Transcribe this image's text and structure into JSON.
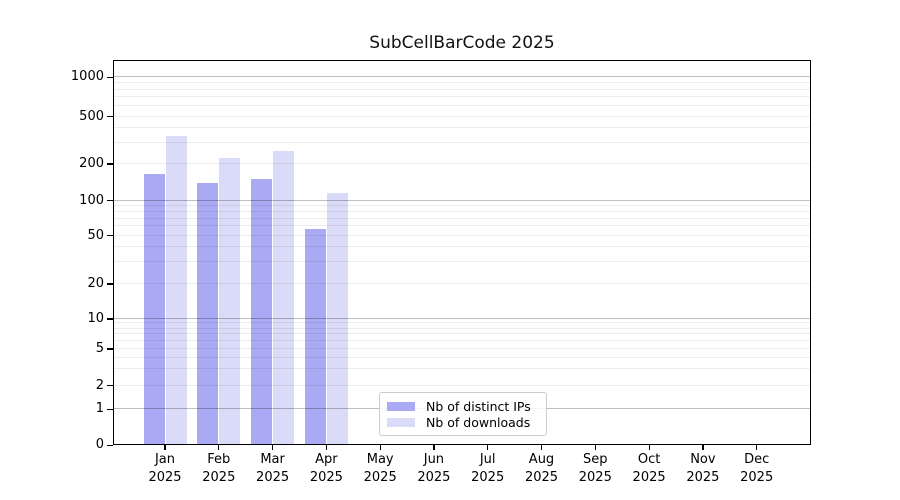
{
  "title": "SubCellBarCode 2025",
  "chart_data": {
    "type": "bar",
    "title": "SubCellBarCode 2025",
    "categories": [
      "Jan 2025",
      "Feb 2025",
      "Mar 2025",
      "Apr 2025",
      "May 2025",
      "Jun 2025",
      "Jul 2025",
      "Aug 2025",
      "Sep 2025",
      "Oct 2025",
      "Nov 2025",
      "Dec 2025"
    ],
    "series": [
      {
        "name": "Nb of distinct IPs",
        "color": "#a9a9f4",
        "values": [
          165,
          140,
          150,
          57,
          0,
          0,
          0,
          0,
          0,
          0,
          0,
          0
        ]
      },
      {
        "name": "Nb of downloads",
        "color": "#dadaf9",
        "values": [
          340,
          225,
          255,
          115,
          0,
          0,
          0,
          0,
          0,
          0,
          0,
          0
        ]
      }
    ],
    "xlabel": "",
    "ylabel": "",
    "yscale": "symlog",
    "yticks": [
      0,
      1,
      2,
      5,
      10,
      20,
      50,
      100,
      200,
      500,
      1000
    ],
    "ylim": [
      0,
      1400
    ],
    "grid": "horizontal, minor light + major darker at powers of 10, drawn over bars",
    "legend_position": "inside lower-center",
    "legend": [
      {
        "label": "Nb of distinct IPs",
        "color": "#a9a9f4"
      },
      {
        "label": "Nb of downloads",
        "color": "#dadaf9"
      }
    ]
  }
}
